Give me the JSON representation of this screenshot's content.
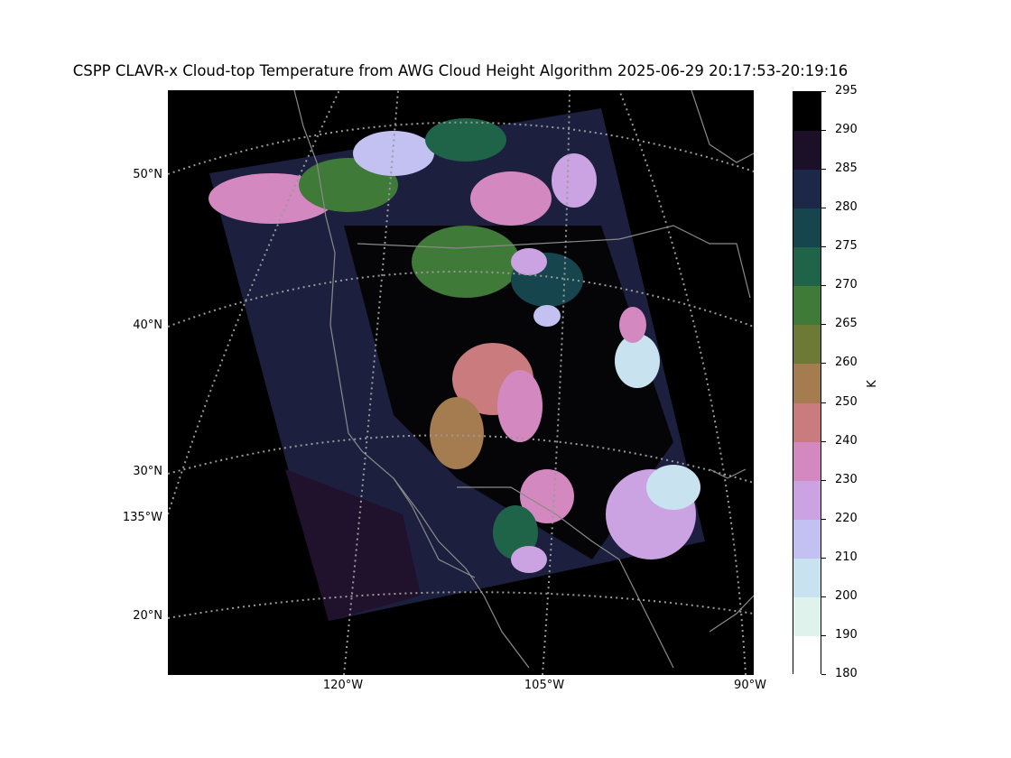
{
  "title": "CSPP CLAVR-x Cloud-top Temperature from AWG Cloud Height Algorithm 2025-06-29 20:17:53-20:19:16",
  "lat_labels": [
    "50°N",
    "40°N",
    "30°N",
    "20°N"
  ],
  "lon_labels": [
    "120°W",
    "105°W",
    "90°W"
  ],
  "extra_lon_label": "135°W",
  "colorbar": {
    "unit": "K",
    "ticks": [
      "295",
      "290",
      "285",
      "280",
      "275",
      "270",
      "265",
      "260",
      "250",
      "240",
      "230",
      "220",
      "210",
      "200",
      "190",
      "180"
    ],
    "colors": [
      "#000000",
      "#1c1028",
      "#1d2748",
      "#17454d",
      "#1f6448",
      "#3f7a38",
      "#6c7a36",
      "#a57c50",
      "#c97b7d",
      "#d488c0",
      "#cba2e2",
      "#c3c1f1",
      "#c8e2f0",
      "#dff3ec",
      "#ffffff"
    ]
  },
  "icons": {
    "map": "geographic-map-icon",
    "colorbar": "colorbar-gradient"
  }
}
